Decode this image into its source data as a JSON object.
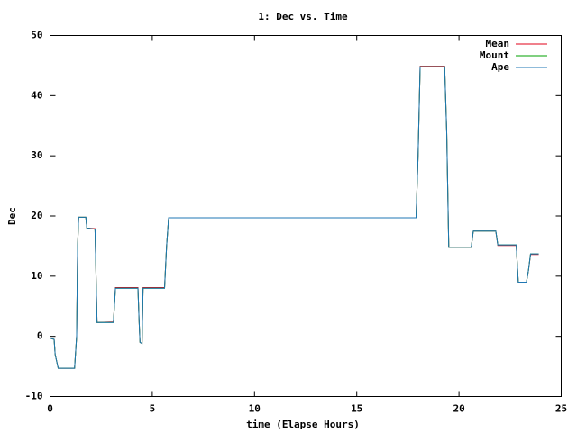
{
  "chart_data": {
    "type": "line",
    "title": "1: Dec vs. Time",
    "x_label": "time (Elapse Hours)",
    "y_label": "Dec",
    "x": [
      0,
      0.2,
      0.25,
      0.4,
      1.2,
      1.3,
      1.35,
      1.4,
      1.75,
      1.8,
      2.2,
      2.3,
      3.1,
      3.2,
      4.3,
      4.35,
      4.4,
      4.5,
      4.55,
      5.6,
      5.7,
      5.8,
      17.9,
      18.0,
      18.1,
      19.3,
      19.4,
      19.5,
      20.6,
      20.7,
      21.8,
      21.9,
      22.8,
      22.9,
      23.3,
      23.4,
      23.5,
      23.9
    ],
    "series": [
      {
        "name": "Mean",
        "color": "#e0001a",
        "values": [
          -0.3,
          -0.5,
          -3,
          -5.3,
          -5.3,
          0,
          15,
          19.8,
          19.8,
          18,
          17.9,
          2.3,
          2.4,
          8.1,
          8.1,
          3,
          -1,
          -1.2,
          8.1,
          8.1,
          15,
          19.7,
          19.7,
          30,
          44.9,
          44.9,
          34,
          14.8,
          14.8,
          17.5,
          17.5,
          15.1,
          15.1,
          9,
          9,
          11,
          13.6,
          13.6
        ]
      },
      {
        "name": "Mount",
        "color": "#00a000",
        "values": [
          -0.3,
          -0.5,
          -3,
          -5.3,
          -5.3,
          0,
          15,
          19.8,
          19.8,
          18,
          17.8,
          2.3,
          2.3,
          8,
          8,
          3,
          -1,
          -1.2,
          8,
          8,
          15,
          19.7,
          19.7,
          30,
          44.8,
          44.8,
          34,
          14.8,
          14.8,
          17.5,
          17.5,
          15.2,
          15.2,
          9,
          9,
          11,
          13.7,
          13.7
        ]
      },
      {
        "name": "Ape",
        "color": "#1f77b4",
        "values": [
          -0.3,
          -0.5,
          -3,
          -5.3,
          -5.3,
          0,
          15,
          19.8,
          19.8,
          18,
          17.8,
          2.3,
          2.3,
          8,
          8,
          3,
          -1,
          -1.2,
          8,
          8,
          15,
          19.7,
          19.7,
          30,
          44.8,
          44.8,
          34,
          14.8,
          14.8,
          17.5,
          17.5,
          15.2,
          15.2,
          9,
          9,
          11,
          13.7,
          13.7
        ]
      }
    ],
    "xlim": [
      0,
      25
    ],
    "xticks": [
      0,
      5,
      10,
      15,
      20,
      25
    ],
    "ylim": [
      -10,
      50
    ],
    "yticks": [
      -10,
      0,
      10,
      20,
      30,
      40,
      50
    ],
    "grid": false,
    "legend": "top-right"
  }
}
